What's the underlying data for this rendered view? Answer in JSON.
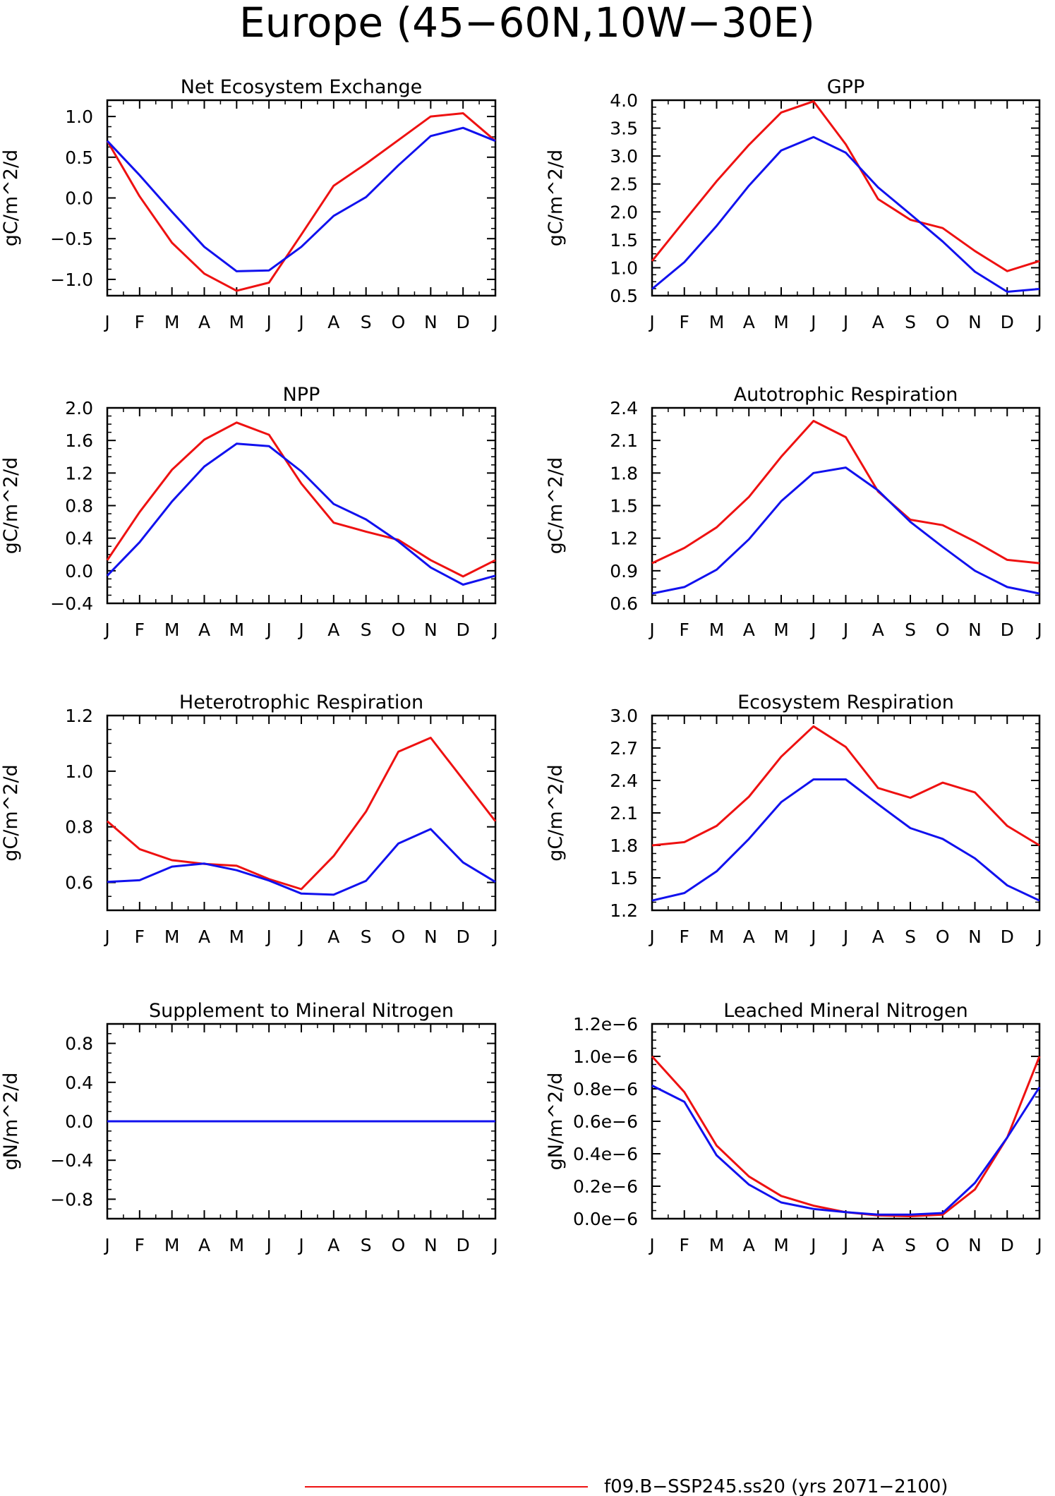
{
  "figure": {
    "title": "Europe (45−60N,10W−30E)",
    "legend": "f09.B−SSP245.ss20 (yrs 2071−2100)",
    "colors": {
      "series_red": "#ee1111",
      "series_blue": "#1111ee",
      "axis": "#000000"
    }
  },
  "chart_data": [
    {
      "type": "line",
      "title": "Net Ecosystem Exchange",
      "ylabel": "gC/m^2/d",
      "x": [
        "J",
        "F",
        "M",
        "A",
        "M",
        "J",
        "J",
        "A",
        "S",
        "O",
        "N",
        "D",
        "J"
      ],
      "ylim": [
        -1.2,
        1.2
      ],
      "yticks": [
        -1.0,
        -0.5,
        0.0,
        0.5,
        1.0
      ],
      "ytick_labels": [
        "−1.0",
        "−0.5",
        "0.0",
        "0.5",
        "1.0"
      ],
      "series": [
        {
          "color": "#ee1111",
          "values": [
            0.7,
            0.02,
            -0.55,
            -0.93,
            -1.14,
            -1.04,
            -0.45,
            0.15,
            0.42,
            0.71,
            1.0,
            1.04,
            0.7
          ]
        },
        {
          "color": "#1111ee",
          "values": [
            0.7,
            0.28,
            -0.17,
            -0.6,
            -0.9,
            -0.89,
            -0.6,
            -0.22,
            0.01,
            0.4,
            0.76,
            0.86,
            0.7
          ]
        }
      ]
    },
    {
      "type": "line",
      "title": "GPP",
      "ylabel": "gC/m^2/d",
      "x": [
        "J",
        "F",
        "M",
        "A",
        "M",
        "J",
        "J",
        "A",
        "S",
        "O",
        "N",
        "D",
        "J"
      ],
      "ylim": [
        0.5,
        4.0
      ],
      "yticks": [
        0.5,
        1.0,
        1.5,
        2.0,
        2.5,
        3.0,
        3.5,
        4.0
      ],
      "ytick_labels": [
        "0.5",
        "1.0",
        "1.5",
        "2.0",
        "2.5",
        "3.0",
        "3.5",
        "4.0"
      ],
      "series": [
        {
          "color": "#ee1111",
          "values": [
            1.12,
            1.84,
            2.55,
            3.2,
            3.78,
            3.98,
            3.21,
            2.23,
            1.86,
            1.71,
            1.3,
            0.94,
            1.12
          ]
        },
        {
          "color": "#1111ee",
          "values": [
            0.62,
            1.1,
            1.75,
            2.47,
            3.1,
            3.34,
            3.06,
            2.44,
            1.96,
            1.47,
            0.93,
            0.57,
            0.62
          ]
        }
      ]
    },
    {
      "type": "line",
      "title": "NPP",
      "ylabel": "gC/m^2/d",
      "x": [
        "J",
        "F",
        "M",
        "A",
        "M",
        "J",
        "J",
        "A",
        "S",
        "O",
        "N",
        "D",
        "J"
      ],
      "ylim": [
        -0.4,
        2.0
      ],
      "yticks": [
        -0.4,
        0.0,
        0.4,
        0.8,
        1.2,
        1.6,
        2.0
      ],
      "ytick_labels": [
        "−0.4",
        "0.0",
        "0.4",
        "0.8",
        "1.2",
        "1.6",
        "2.0"
      ],
      "series": [
        {
          "color": "#ee1111",
          "values": [
            0.13,
            0.72,
            1.24,
            1.61,
            1.82,
            1.67,
            1.07,
            0.59,
            0.48,
            0.38,
            0.13,
            -0.07,
            0.13
          ]
        },
        {
          "color": "#1111ee",
          "values": [
            -0.06,
            0.35,
            0.85,
            1.28,
            1.56,
            1.53,
            1.22,
            0.82,
            0.63,
            0.36,
            0.04,
            -0.17,
            -0.06
          ]
        }
      ]
    },
    {
      "type": "line",
      "title": "Autotrophic Respiration",
      "ylabel": "gC/m^2/d",
      "x": [
        "J",
        "F",
        "M",
        "A",
        "M",
        "J",
        "J",
        "A",
        "S",
        "O",
        "N",
        "D",
        "J"
      ],
      "ylim": [
        0.6,
        2.4
      ],
      "yticks": [
        0.6,
        0.9,
        1.2,
        1.5,
        1.8,
        2.1,
        2.4
      ],
      "ytick_labels": [
        "0.6",
        "0.9",
        "1.2",
        "1.5",
        "1.8",
        "2.1",
        "2.4"
      ],
      "series": [
        {
          "color": "#ee1111",
          "values": [
            0.97,
            1.11,
            1.3,
            1.58,
            1.95,
            2.28,
            2.13,
            1.63,
            1.37,
            1.32,
            1.17,
            1.0,
            0.97
          ]
        },
        {
          "color": "#1111ee",
          "values": [
            0.69,
            0.75,
            0.91,
            1.19,
            1.54,
            1.8,
            1.85,
            1.64,
            1.35,
            1.12,
            0.9,
            0.75,
            0.69
          ]
        }
      ]
    },
    {
      "type": "line",
      "title": "Heterotrophic Respiration",
      "ylabel": "gC/m^2/d",
      "x": [
        "J",
        "F",
        "M",
        "A",
        "M",
        "J",
        "J",
        "A",
        "S",
        "O",
        "N",
        "D",
        "J"
      ],
      "ylim": [
        0.5,
        1.2
      ],
      "yticks": [
        0.6,
        0.8,
        1.0,
        1.2
      ],
      "ytick_labels": [
        "0.6",
        "0.8",
        "1.0",
        "1.2"
      ],
      "series": [
        {
          "color": "#ee1111",
          "values": [
            0.82,
            0.72,
            0.68,
            0.667,
            0.66,
            0.612,
            0.576,
            0.695,
            0.855,
            1.07,
            1.12,
            0.97,
            0.82
          ]
        },
        {
          "color": "#1111ee",
          "values": [
            0.602,
            0.608,
            0.657,
            0.668,
            0.644,
            0.607,
            0.56,
            0.556,
            0.606,
            0.74,
            0.792,
            0.672,
            0.602
          ]
        }
      ]
    },
    {
      "type": "line",
      "title": "Ecosystem Respiration",
      "ylabel": "gC/m^2/d",
      "x": [
        "J",
        "F",
        "M",
        "A",
        "M",
        "J",
        "J",
        "A",
        "S",
        "O",
        "N",
        "D",
        "J"
      ],
      "ylim": [
        1.2,
        3.0
      ],
      "yticks": [
        1.2,
        1.5,
        1.8,
        2.1,
        2.4,
        2.7,
        3.0
      ],
      "ytick_labels": [
        "1.2",
        "1.5",
        "1.8",
        "2.1",
        "2.4",
        "2.7",
        "3.0"
      ],
      "series": [
        {
          "color": "#ee1111",
          "values": [
            1.8,
            1.83,
            1.98,
            2.25,
            2.62,
            2.9,
            2.71,
            2.33,
            2.24,
            2.38,
            2.29,
            1.98,
            1.8
          ]
        },
        {
          "color": "#1111ee",
          "values": [
            1.29,
            1.36,
            1.56,
            1.86,
            2.2,
            2.41,
            2.41,
            2.18,
            1.96,
            1.86,
            1.68,
            1.43,
            1.29
          ]
        }
      ]
    },
    {
      "type": "line",
      "title": "Supplement to Mineral Nitrogen",
      "ylabel": "gN/m^2/d",
      "x": [
        "J",
        "F",
        "M",
        "A",
        "M",
        "J",
        "J",
        "A",
        "S",
        "O",
        "N",
        "D",
        "J"
      ],
      "ylim": [
        -1.0,
        1.0
      ],
      "yticks": [
        -0.8,
        -0.4,
        0.0,
        0.4,
        0.8
      ],
      "ytick_labels": [
        "−0.8",
        "−0.4",
        "0.0",
        "0.4",
        "0.8"
      ],
      "series": [
        {
          "color": "#ee1111",
          "values": [
            0,
            0,
            0,
            0,
            0,
            0,
            0,
            0,
            0,
            0,
            0,
            0,
            0
          ]
        },
        {
          "color": "#1111ee",
          "values": [
            0,
            0,
            0,
            0,
            0,
            0,
            0,
            0,
            0,
            0,
            0,
            0,
            0
          ]
        }
      ]
    },
    {
      "type": "line",
      "title": "Leached Mineral Nitrogen",
      "ylabel": "gN/m^2/d",
      "x": [
        "J",
        "F",
        "M",
        "A",
        "M",
        "J",
        "J",
        "A",
        "S",
        "O",
        "N",
        "D",
        "J"
      ],
      "ylim": [
        0.0,
        1.2e-06
      ],
      "yticks": [
        0.0,
        2e-07,
        4e-07,
        6e-07,
        8e-07,
        1e-06,
        1.2e-06
      ],
      "ytick_labels": [
        "0.0e−6",
        "0.2e−6",
        "0.4e−6",
        "0.6e−6",
        "0.8e−6",
        "1.0e−6",
        "1.2e−6"
      ],
      "series": [
        {
          "color": "#ee1111",
          "values": [
            1e-06,
            7.8e-07,
            4.5e-07,
            2.6e-07,
            1.4e-07,
            8e-08,
            4e-08,
            2e-08,
            1.5e-08,
            2.5e-08,
            1.8e-07,
            5e-07,
            1e-06
          ]
        },
        {
          "color": "#1111ee",
          "values": [
            8.2e-07,
            7.2e-07,
            3.9e-07,
            2.1e-07,
            1e-07,
            6e-08,
            4e-08,
            2.5e-08,
            2.5e-08,
            3.5e-08,
            2.2e-07,
            5e-07,
            8.1e-07
          ]
        }
      ]
    }
  ]
}
